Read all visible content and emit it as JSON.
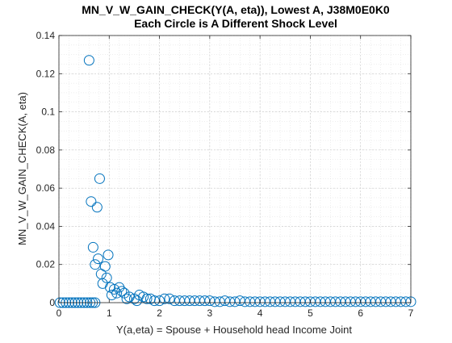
{
  "chart_data": {
    "type": "scatter",
    "title": "MN_V_W_GAIN_CHECK(Y(A, eta)), Lowest A, J38M0E0K0",
    "subtitle": "Each Circle is A Different Shock Level",
    "xlabel": "Y(a,eta) = Spouse + Household head Income Joint",
    "ylabel": "MN_V_W_GAIN_CHECK(A, eta)",
    "xlim": [
      0,
      7
    ],
    "ylim": [
      0,
      0.14
    ],
    "xticks": [
      0,
      1,
      2,
      3,
      4,
      5,
      6,
      7
    ],
    "xtick_labels": [
      "0",
      "1",
      "2",
      "3",
      "4",
      "5",
      "6",
      "7"
    ],
    "yticks": [
      0,
      0.02,
      0.04,
      0.06,
      0.08,
      0.1,
      0.12,
      0.14
    ],
    "ytick_labels": [
      "0",
      "0.02",
      "0.04",
      "0.06",
      "0.08",
      "0.1",
      "0.12",
      "0.14"
    ],
    "grid": "major and minor, dotted",
    "marker": "open circle",
    "color": "#0072BD",
    "points": [
      [
        0.02,
        0
      ],
      [
        0.08,
        0
      ],
      [
        0.14,
        0
      ],
      [
        0.2,
        0
      ],
      [
        0.26,
        0
      ],
      [
        0.32,
        0
      ],
      [
        0.38,
        0
      ],
      [
        0.44,
        0
      ],
      [
        0.5,
        0
      ],
      [
        0.56,
        0
      ],
      [
        0.62,
        0
      ],
      [
        0.67,
        0
      ],
      [
        0.72,
        0
      ],
      [
        0.6,
        0.127
      ],
      [
        0.81,
        0.065
      ],
      [
        0.64,
        0.053
      ],
      [
        0.76,
        0.05
      ],
      [
        0.68,
        0.029
      ],
      [
        0.78,
        0.023
      ],
      [
        0.72,
        0.02
      ],
      [
        0.98,
        0.025
      ],
      [
        0.92,
        0.019
      ],
      [
        0.84,
        0.015
      ],
      [
        0.95,
        0.013
      ],
      [
        0.87,
        0.01
      ],
      [
        1.02,
        0.008
      ],
      [
        1.1,
        0.007
      ],
      [
        1.2,
        0.008
      ],
      [
        1.25,
        0.006
      ],
      [
        1.15,
        0.005
      ],
      [
        1.3,
        0.005
      ],
      [
        1.05,
        0.004
      ],
      [
        1.4,
        0.003
      ],
      [
        1.35,
        0.002
      ],
      [
        1.5,
        0.002
      ],
      [
        1.6,
        0.004
      ],
      [
        1.68,
        0.003
      ],
      [
        1.55,
        0.001
      ],
      [
        1.75,
        0.002
      ],
      [
        1.82,
        0.002
      ],
      [
        1.9,
        0.001
      ],
      [
        2.0,
        0.001
      ],
      [
        2.1,
        0.002
      ],
      [
        2.2,
        0.002
      ],
      [
        2.3,
        0.001
      ],
      [
        2.4,
        0.001
      ],
      [
        2.5,
        0.001
      ],
      [
        2.6,
        0.001
      ],
      [
        2.7,
        0.001
      ],
      [
        2.8,
        0.001
      ],
      [
        2.9,
        0.001
      ],
      [
        3.0,
        0.001
      ],
      [
        3.1,
        0.0005
      ],
      [
        3.2,
        0.0005
      ],
      [
        3.3,
        0.001
      ],
      [
        3.4,
        0.0005
      ],
      [
        3.5,
        0.0005
      ],
      [
        3.6,
        0.001
      ],
      [
        3.7,
        0.0005
      ],
      [
        3.8,
        0.0005
      ],
      [
        3.9,
        0.0005
      ],
      [
        4.0,
        0.0005
      ],
      [
        4.1,
        0.0005
      ],
      [
        4.2,
        0.0005
      ],
      [
        4.3,
        0.0005
      ],
      [
        4.4,
        0.0005
      ],
      [
        4.5,
        0.0005
      ],
      [
        4.6,
        0.0005
      ],
      [
        4.7,
        0.0005
      ],
      [
        4.8,
        0.0005
      ],
      [
        4.9,
        0.0005
      ],
      [
        5.0,
        0.0005
      ],
      [
        5.1,
        0.0005
      ],
      [
        5.2,
        0.0005
      ],
      [
        5.3,
        0.0005
      ],
      [
        5.4,
        0.0005
      ],
      [
        5.5,
        0.0005
      ],
      [
        5.6,
        0.0005
      ],
      [
        5.7,
        0.0005
      ],
      [
        5.8,
        0.0005
      ],
      [
        5.9,
        0.0005
      ],
      [
        6.0,
        0.0005
      ],
      [
        6.1,
        0.0005
      ],
      [
        6.2,
        0.0005
      ],
      [
        6.3,
        0.0005
      ],
      [
        6.4,
        0.0005
      ],
      [
        6.5,
        0.0005
      ],
      [
        6.6,
        0.0005
      ],
      [
        6.7,
        0.0005
      ],
      [
        6.8,
        0.0005
      ],
      [
        6.9,
        0.0005
      ],
      [
        7.0,
        0.0005
      ]
    ]
  }
}
